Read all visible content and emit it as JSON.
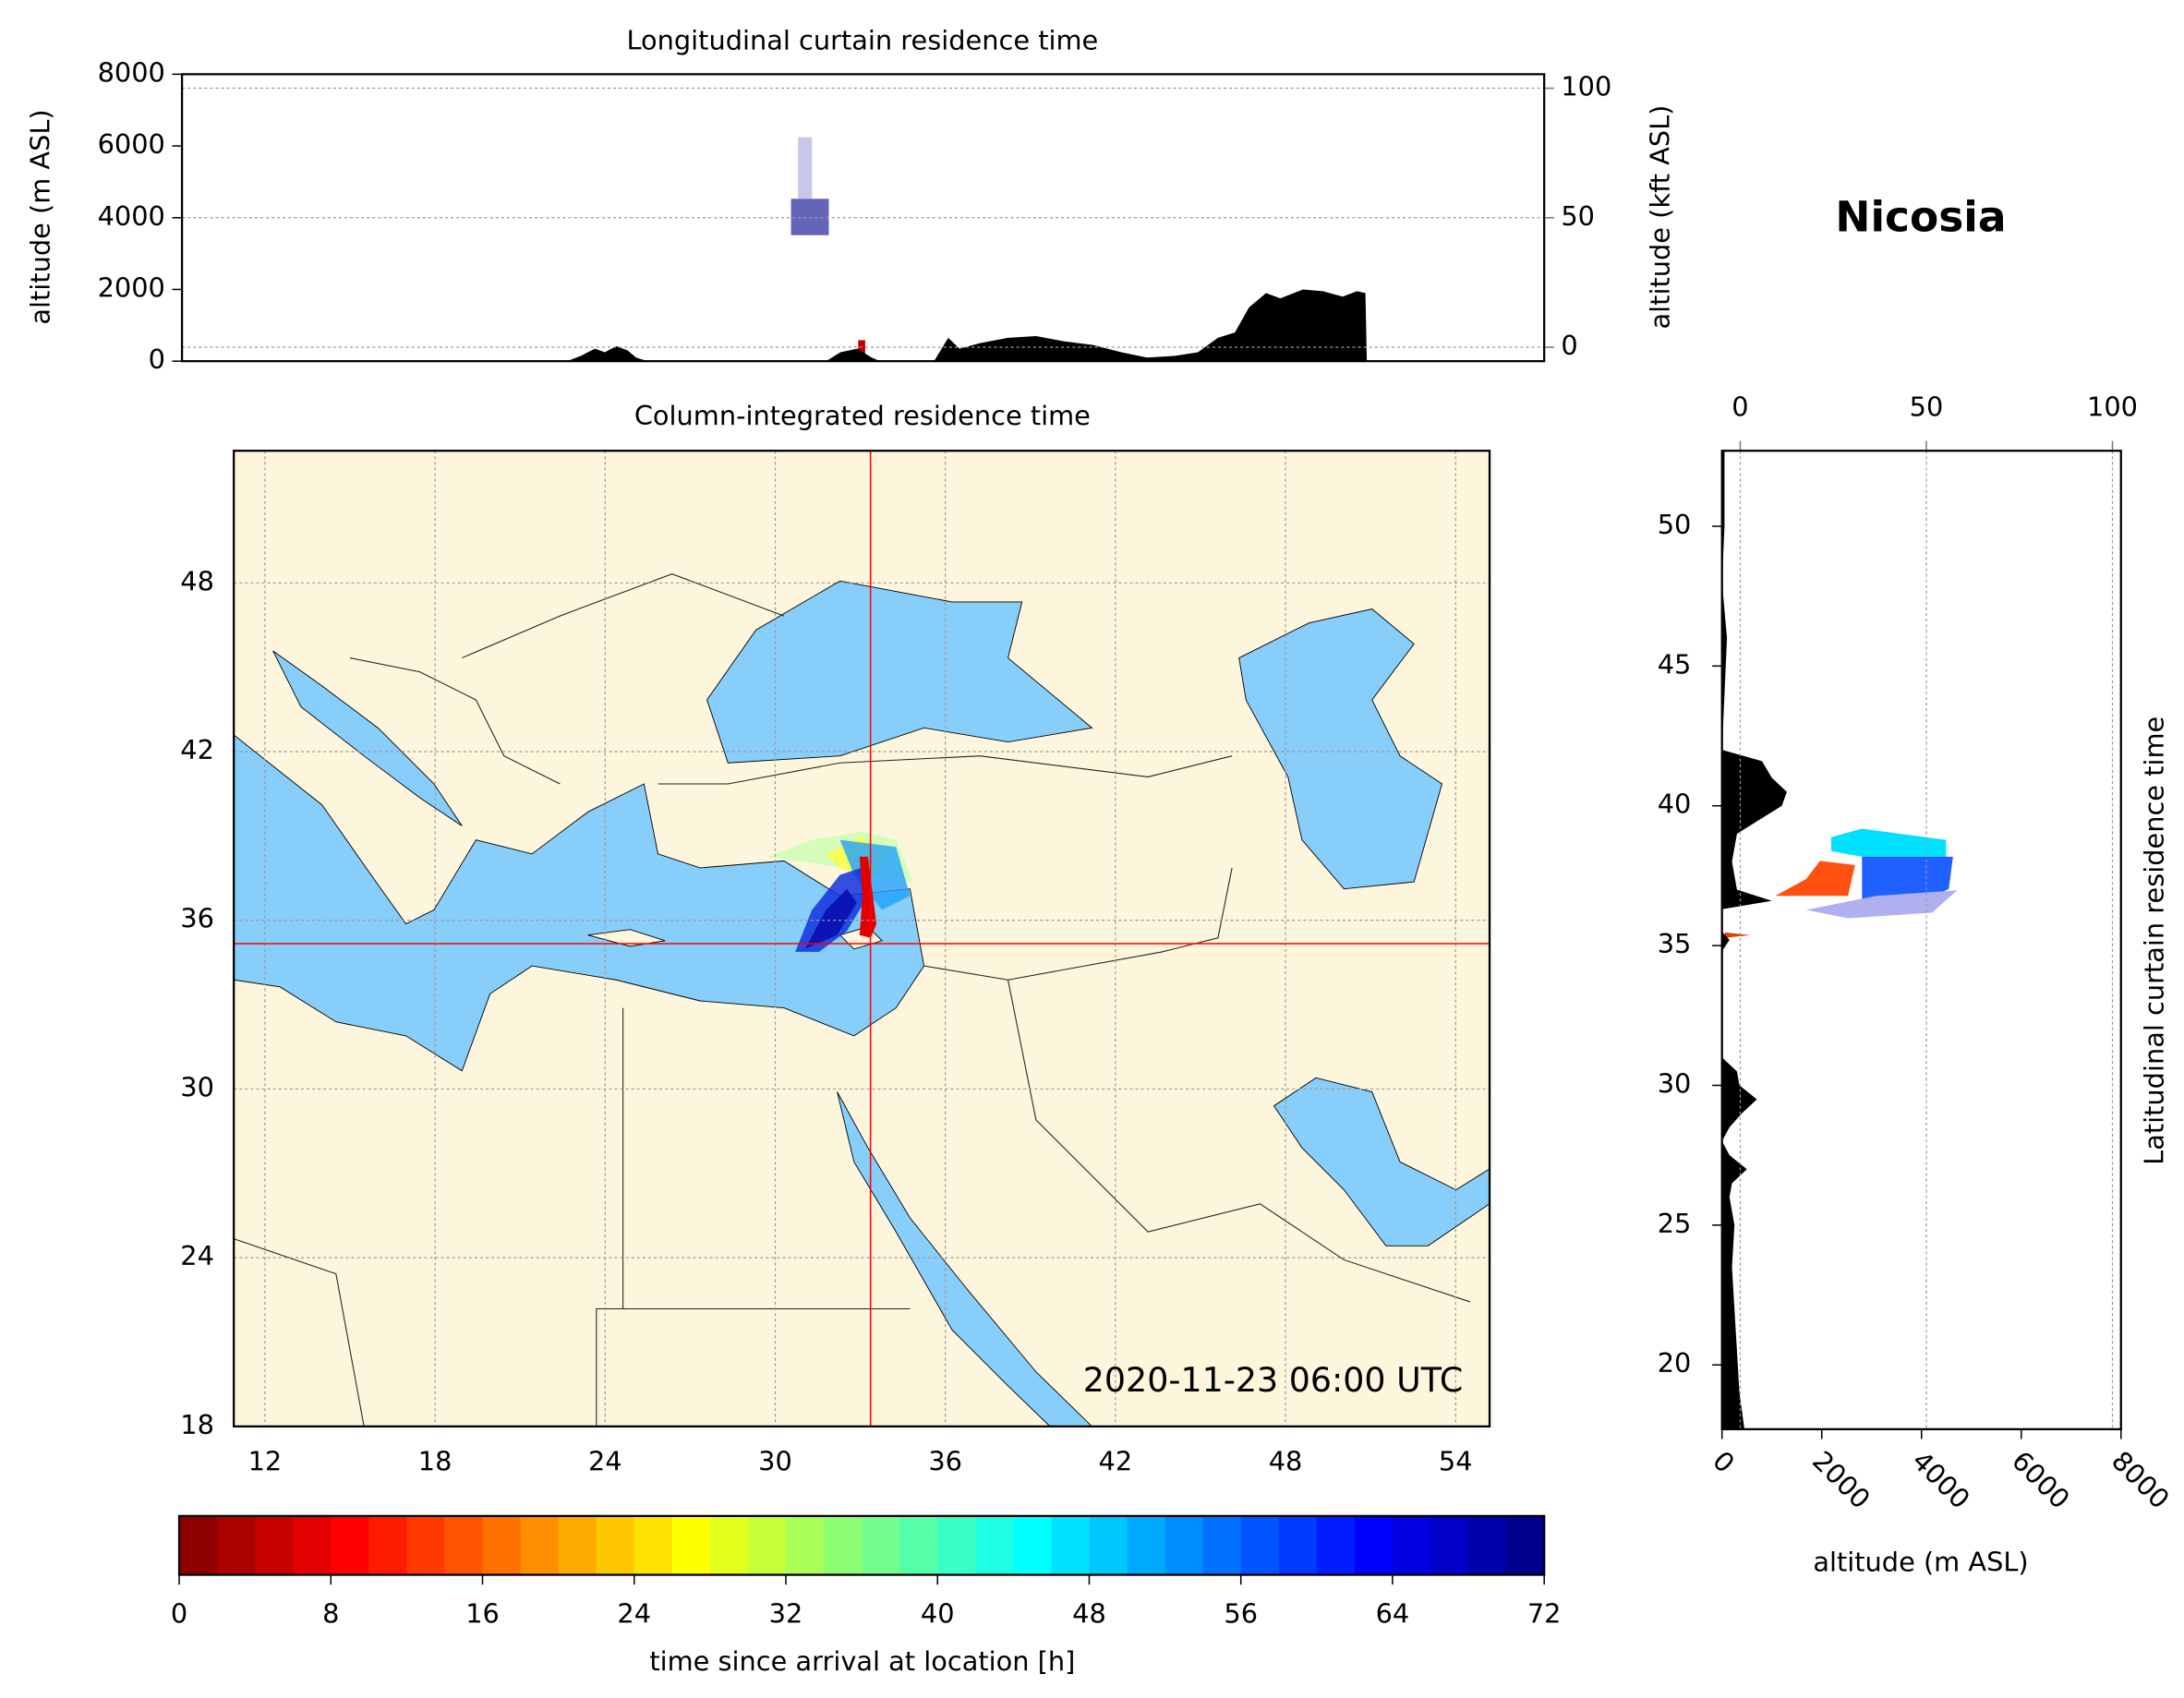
{
  "station": "Nicosia",
  "chart_data": [
    {
      "type": "area",
      "title": "Longitudinal curtain residence time",
      "ylabel": "altitude (m ASL)",
      "y2label": "altitude (kft ASL)",
      "xlim": [
        9.1,
        57.1
      ],
      "ylim": [
        0,
        8000
      ],
      "yticks": [
        0,
        2000,
        4000,
        6000,
        8000
      ],
      "y2lim": [
        -5.4,
        105.4
      ],
      "y2ticks": [
        0,
        50,
        100
      ],
      "grid": true,
      "color": "#000000",
      "x": [
        22.67,
        23.16,
        23.65,
        24.0,
        24.4,
        24.8,
        25.1,
        25.5,
        31.8,
        32.3,
        32.9,
        33.4,
        33.7,
        35.6,
        36.1,
        36.5,
        37.2,
        38.2,
        39.2,
        40.2,
        41.2,
        42.2,
        43.1,
        44.1,
        44.9,
        45.6,
        46.2,
        46.7,
        47.3,
        47.8,
        48.6,
        49.3,
        50.0,
        50.5,
        50.8,
        50.85
      ],
      "values": [
        0,
        150,
        350,
        250,
        420,
        300,
        100,
        0,
        0,
        250,
        350,
        100,
        0,
        0,
        650,
        350,
        500,
        650,
        700,
        550,
        450,
        250,
        100,
        150,
        250,
        650,
        800,
        1500,
        1900,
        1750,
        2000,
        1950,
        1800,
        1950,
        1900,
        0
      ]
    },
    {
      "type": "map",
      "title": "Column-integrated residence time",
      "annotation": "2020-11-23 06:00 UTC",
      "xlim": [
        10.9,
        55.2
      ],
      "xticks": [
        12,
        18,
        24,
        30,
        36,
        42,
        48,
        54
      ],
      "ylim": [
        18,
        52.7
      ],
      "yticks": [
        18,
        24,
        30,
        36,
        42,
        48
      ],
      "grid": true,
      "location": [
        33.36,
        35.17
      ],
      "color": "#ff0000"
    },
    {
      "type": "profile",
      "ylabel": "Latitudinal curtain residence time",
      "xlabel": "altitude (m ASL)",
      "xlim": [
        0,
        8000
      ],
      "xticks": [
        0,
        2000,
        4000,
        6000,
        8000
      ],
      "x2lim": [
        -4.9,
        102.3
      ],
      "x2ticks": [
        0,
        50,
        100
      ],
      "ylim": [
        17.7,
        52.7
      ],
      "yticks": [
        20,
        25,
        30,
        35,
        40,
        45,
        50
      ],
      "grid": true,
      "color": "#000000",
      "y": [
        17.7,
        19,
        20.5,
        22,
        23.5,
        25,
        26,
        26.5,
        27,
        27.5,
        28,
        28.5,
        29,
        29.5,
        30,
        30.5,
        31,
        34.8,
        35.2,
        35.5,
        36.3,
        36.6,
        37,
        38,
        39,
        40,
        40.5,
        41,
        41.6,
        42,
        46,
        48,
        50,
        52.7
      ],
      "values": [
        450,
        350,
        300,
        250,
        200,
        250,
        150,
        200,
        500,
        150,
        0,
        150,
        400,
        700,
        350,
        300,
        0,
        0,
        150,
        0,
        0,
        1000,
        300,
        200,
        300,
        1200,
        1300,
        1000,
        800,
        0,
        100,
        0,
        50,
        50
      ]
    },
    {
      "type": "colorbar",
      "label": "time since arrival at location [h]",
      "xlim": [
        0,
        72
      ],
      "xticks": [
        0,
        8,
        16,
        24,
        32,
        40,
        48,
        56,
        64,
        72
      ],
      "colors": [
        "#800000",
        "#ff0000",
        "#ff8000",
        "#ffff00",
        "#80ff80",
        "#00ffff",
        "#0080ff",
        "#0000ff",
        "#000080"
      ]
    }
  ]
}
